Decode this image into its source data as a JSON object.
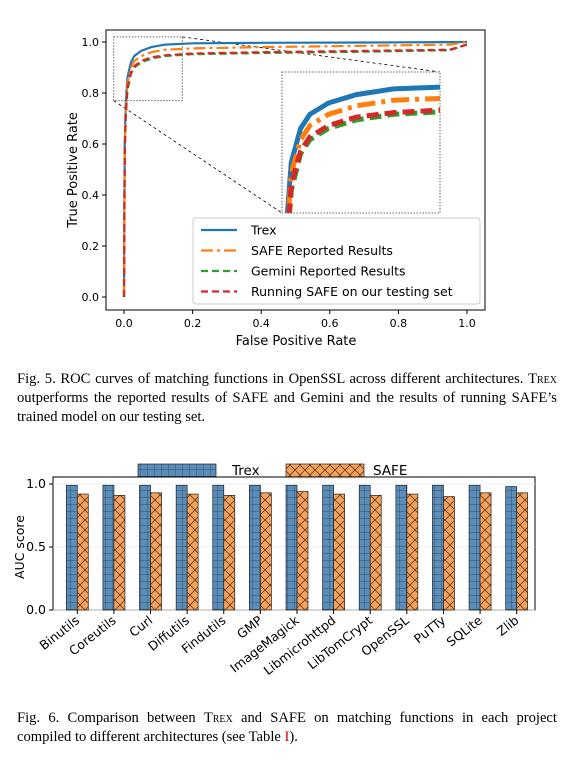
{
  "figure5": {
    "caption_label": "Fig. 5.",
    "caption_text_before": "ROC curves of matching functions in OpenSSL across different architectures.",
    "caption_name": "Trex",
    "caption_text_after": "outperforms the reported results of SAFE and Gemini and the results of running SAFE’s trained model on our testing set."
  },
  "figure6": {
    "caption_label": "Fig. 6.",
    "caption_text_before": "Comparison between",
    "caption_name": "Trex",
    "caption_text_middle": "and SAFE on matching functions in each project compiled to different architectures (see Table",
    "caption_ref": "I",
    "caption_text_after": ")."
  },
  "chart_data": [
    {
      "type": "line",
      "xlabel": "False Positive Rate",
      "ylabel": "True Positive Rate",
      "xlim": [
        0.0,
        1.0
      ],
      "ylim": [
        0.0,
        1.0
      ],
      "xticks": [
        "0.0",
        "0.2",
        "0.4",
        "0.6",
        "0.8",
        "1.0"
      ],
      "yticks": [
        "0.0",
        "0.2",
        "0.4",
        "0.6",
        "0.8",
        "1.0"
      ],
      "grid": false,
      "legend_position": "lower-right",
      "inset": "zoom of top-left region",
      "series": [
        {
          "name": "Trex",
          "color": "#1f77b4",
          "style": "solid",
          "x": [
            0,
            0.002,
            0.005,
            0.01,
            0.02,
            0.03,
            0.05,
            0.08,
            0.12,
            0.2,
            0.4,
            0.7,
            1.0
          ],
          "y": [
            0,
            0.6,
            0.75,
            0.86,
            0.92,
            0.945,
            0.965,
            0.98,
            0.99,
            0.995,
            0.997,
            0.998,
            1.0
          ]
        },
        {
          "name": "SAFE Reported Results",
          "color": "#ff7f0e",
          "style": "dashdot",
          "x": [
            0,
            0.002,
            0.005,
            0.01,
            0.02,
            0.03,
            0.05,
            0.08,
            0.12,
            0.2,
            0.4,
            0.7,
            0.95,
            1.0
          ],
          "y": [
            0,
            0.58,
            0.72,
            0.84,
            0.9,
            0.925,
            0.945,
            0.96,
            0.97,
            0.975,
            0.98,
            0.985,
            0.99,
            1.0
          ]
        },
        {
          "name": "Gemini Reported Results",
          "color": "#2ca02c",
          "style": "dashed",
          "x": [
            0,
            0.002,
            0.005,
            0.01,
            0.02,
            0.03,
            0.05,
            0.08,
            0.12,
            0.2,
            0.4,
            0.7,
            0.95,
            1.0
          ],
          "y": [
            0,
            0.55,
            0.7,
            0.81,
            0.875,
            0.9,
            0.92,
            0.935,
            0.945,
            0.952,
            0.957,
            0.962,
            0.968,
            0.99
          ]
        },
        {
          "name": "Running SAFE on our testing set",
          "color": "#d62728",
          "style": "dashed",
          "x": [
            0,
            0.002,
            0.005,
            0.01,
            0.02,
            0.03,
            0.05,
            0.08,
            0.12,
            0.2,
            0.4,
            0.7,
            0.95,
            1.0
          ],
          "y": [
            0,
            0.56,
            0.71,
            0.82,
            0.88,
            0.905,
            0.925,
            0.94,
            0.948,
            0.955,
            0.96,
            0.965,
            0.97,
            0.99
          ]
        }
      ]
    },
    {
      "type": "bar",
      "ylabel": "AUC score",
      "ylim": [
        0.0,
        1.0
      ],
      "yticks": [
        "0.0",
        "0.5",
        "1.0"
      ],
      "grid": true,
      "legend_position": "top",
      "categories": [
        "Binutils",
        "Coreutils",
        "Curl",
        "Diffutils",
        "Findutils",
        "GMP",
        "ImageMagick",
        "Libmicrohttpd",
        "LibTomCrypt",
        "OpenSSL",
        "PuTTy",
        "SQLite",
        "Zlib"
      ],
      "series": [
        {
          "name": "Trex",
          "color": "#5b8db8",
          "hatch": "grid",
          "values": [
            0.99,
            0.99,
            0.99,
            0.99,
            0.99,
            0.99,
            0.99,
            0.99,
            0.99,
            0.99,
            0.99,
            0.99,
            0.98
          ]
        },
        {
          "name": "SAFE",
          "color": "#f5a25d",
          "hatch": "cross",
          "values": [
            0.92,
            0.91,
            0.93,
            0.92,
            0.91,
            0.93,
            0.94,
            0.92,
            0.91,
            0.92,
            0.9,
            0.93,
            0.93
          ]
        }
      ]
    }
  ]
}
